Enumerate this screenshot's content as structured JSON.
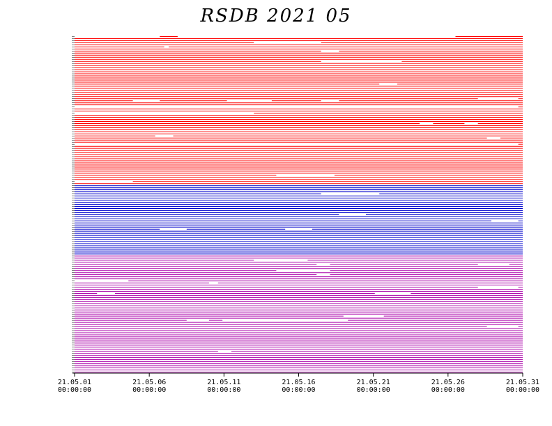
{
  "title": "RSDB  2021  05",
  "chart_data": {
    "type": "timeline",
    "title": "RSDB  2021  05",
    "x_range": [
      "2021-05-01 00:00:00",
      "2021-06-01 00:00:00"
    ],
    "x_ticks": [
      {
        "date": "21.05.01",
        "time": "00:00:00"
      },
      {
        "date": "21.05.06",
        "time": "00:00:00"
      },
      {
        "date": "21.05.11",
        "time": "00:00:00"
      },
      {
        "date": "21.05.16",
        "time": "00:00:00"
      },
      {
        "date": "21.05.21",
        "time": "00:00:00"
      },
      {
        "date": "21.05.26",
        "time": "00:00:00"
      },
      {
        "date": "21.05.31",
        "time": "00:00:00"
      }
    ],
    "groups": [
      {
        "color": "#ff0000",
        "rows": 72
      },
      {
        "color": "#0000cc",
        "rows": 34
      },
      {
        "color": "#aa00aa",
        "rows": 57
      }
    ],
    "gaps": [
      {
        "row": 0,
        "start": 0.0,
        "end": 0.19
      },
      {
        "row": 0,
        "start": 0.23,
        "end": 0.85
      },
      {
        "row": 3,
        "start": 0.4,
        "end": 0.55
      },
      {
        "row": 5,
        "start": 0.2,
        "end": 0.21
      },
      {
        "row": 7,
        "start": 0.55,
        "end": 0.59
      },
      {
        "row": 12,
        "start": 0.55,
        "end": 0.73
      },
      {
        "row": 23,
        "start": 0.68,
        "end": 0.72
      },
      {
        "row": 30,
        "start": 0.9,
        "end": 0.99
      },
      {
        "row": 31,
        "start": 0.13,
        "end": 0.19
      },
      {
        "row": 31,
        "start": 0.34,
        "end": 0.44
      },
      {
        "row": 31,
        "start": 0.55,
        "end": 0.59
      },
      {
        "row": 34,
        "start": 0.0,
        "end": 0.99
      },
      {
        "row": 37,
        "start": 0.0,
        "end": 0.4
      },
      {
        "row": 42,
        "start": 0.77,
        "end": 0.8
      },
      {
        "row": 42,
        "start": 0.87,
        "end": 0.9
      },
      {
        "row": 48,
        "start": 0.18,
        "end": 0.22
      },
      {
        "row": 49,
        "start": 0.92,
        "end": 0.95
      },
      {
        "row": 52,
        "start": 0.0,
        "end": 0.99
      },
      {
        "row": 67,
        "start": 0.45,
        "end": 0.58
      },
      {
        "row": 70,
        "start": 0.0,
        "end": 0.13
      },
      {
        "row": 76,
        "start": 0.55,
        "end": 0.68
      },
      {
        "row": 86,
        "start": 0.59,
        "end": 0.65
      },
      {
        "row": 89,
        "start": 0.93,
        "end": 0.99
      },
      {
        "row": 93,
        "start": 0.19,
        "end": 0.25
      },
      {
        "row": 93,
        "start": 0.47,
        "end": 0.53
      },
      {
        "row": 108,
        "start": 0.4,
        "end": 0.52
      },
      {
        "row": 110,
        "start": 0.54,
        "end": 0.57
      },
      {
        "row": 110,
        "start": 0.9,
        "end": 0.97
      },
      {
        "row": 113,
        "start": 0.45,
        "end": 0.57
      },
      {
        "row": 115,
        "start": 0.54,
        "end": 0.57
      },
      {
        "row": 118,
        "start": 0.0,
        "end": 0.12
      },
      {
        "row": 119,
        "start": 0.3,
        "end": 0.32
      },
      {
        "row": 121,
        "start": 0.9,
        "end": 0.99
      },
      {
        "row": 124,
        "start": 0.05,
        "end": 0.09
      },
      {
        "row": 124,
        "start": 0.67,
        "end": 0.75
      },
      {
        "row": 135,
        "start": 0.6,
        "end": 0.69
      },
      {
        "row": 137,
        "start": 0.25,
        "end": 0.3
      },
      {
        "row": 137,
        "start": 0.33,
        "end": 0.61
      },
      {
        "row": 140,
        "start": 0.92,
        "end": 0.99
      },
      {
        "row": 152,
        "start": 0.32,
        "end": 0.35
      }
    ],
    "row_labels": []
  }
}
